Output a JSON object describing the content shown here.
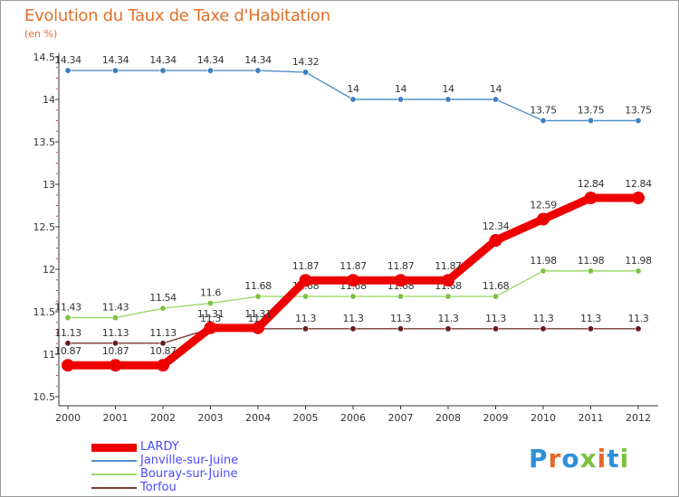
{
  "title": "Evolution du Taux de Taxe d'Habitation",
  "unit_label": "(en %)",
  "logo_text": "Proxiti",
  "logo_colors": [
    "#2f8fd8",
    "#e8682a",
    "#2f8fd8",
    "#7bc241",
    "#e8682a",
    "#2f8fd8",
    "#7bc241"
  ],
  "chart_data": {
    "type": "line",
    "x": [
      "2000",
      "2001",
      "2002",
      "2003",
      "2004",
      "2005",
      "2006",
      "2007",
      "2008",
      "2009",
      "2010",
      "2011",
      "2012"
    ],
    "ylim": [
      10.5,
      14.5
    ],
    "yticks": [
      "10.5",
      "11",
      "11.5",
      "12",
      "12.5",
      "13",
      "13.5",
      "14",
      "14.5"
    ],
    "grid": false,
    "legend_position": "bottom-left",
    "series": [
      {
        "name": "Janville-sur-Juine",
        "color": "#4f8fc7",
        "marker": "#3a7fc0",
        "values": [
          14.34,
          14.34,
          14.34,
          14.34,
          14.34,
          14.32,
          14,
          14,
          14,
          14,
          13.75,
          13.75,
          13.75
        ],
        "labels": [
          "14.34",
          "14.34",
          "14.34",
          "14.34",
          "14.34",
          "14.32",
          "14",
          "14",
          "14",
          "14",
          "13.75",
          "13.75",
          "13.75"
        ]
      },
      {
        "name": "Bouray-sur-Juine",
        "color": "#9bd96b",
        "marker": "#7bc241",
        "values": [
          11.43,
          11.43,
          11.54,
          11.6,
          11.68,
          11.68,
          11.68,
          11.68,
          11.68,
          11.68,
          11.98,
          11.98,
          11.98
        ],
        "labels": [
          "11.43",
          "11.43",
          "11.54",
          "11.6",
          "11.68",
          "11.68",
          "11.68",
          "11.68",
          "11.68",
          "11.68",
          "11.98",
          "11.98",
          "11.98"
        ]
      },
      {
        "name": "Torfou",
        "color": "#7a3a3a",
        "marker": "#6a1a1a",
        "values": [
          11.13,
          11.13,
          11.13,
          11.3,
          11.3,
          11.3,
          11.3,
          11.3,
          11.3,
          11.3,
          11.3,
          11.3,
          11.3
        ],
        "labels": [
          "11.13",
          "11.13",
          "11.13",
          "11.3",
          "11.3",
          "11.3",
          "11.3",
          "11.3",
          "11.3",
          "11.3",
          "11.3",
          "11.3",
          "11.3"
        ]
      },
      {
        "name": "LARDY",
        "color": "#ee0000",
        "marker": "#ee0000",
        "thick": true,
        "values": [
          10.87,
          10.87,
          10.87,
          11.31,
          11.31,
          11.87,
          11.87,
          11.87,
          11.87,
          12.34,
          12.59,
          12.84,
          12.84
        ],
        "labels": [
          "10.87",
          "10.87",
          "10.87",
          "11.31",
          "11.31",
          "11.87",
          "11.87",
          "11.87",
          "11.87",
          "12.34",
          "12.59",
          "12.84",
          "12.84"
        ]
      }
    ],
    "legend_order": [
      "LARDY",
      "Janville-sur-Juine",
      "Bouray-sur-Juine",
      "Torfou"
    ]
  }
}
